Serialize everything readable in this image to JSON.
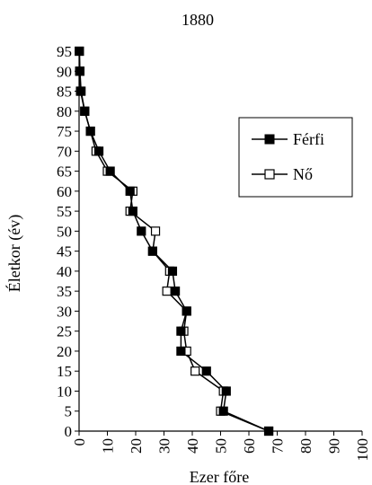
{
  "chart_data": {
    "type": "line",
    "title": "1880",
    "xlabel": "Ezer főre",
    "ylabel": "Életkor (év)",
    "xlim": [
      0,
      100
    ],
    "ylim": [
      0,
      95
    ],
    "xticks": [
      0,
      10,
      20,
      30,
      40,
      50,
      60,
      70,
      80,
      90,
      100
    ],
    "yticks": [
      0,
      5,
      10,
      15,
      20,
      25,
      30,
      35,
      40,
      45,
      50,
      55,
      60,
      65,
      70,
      75,
      80,
      85,
      90,
      95
    ],
    "grid": false,
    "legend_position": "right",
    "series": [
      {
        "name": "Férfi",
        "marker": "filled-square",
        "color": "#000000",
        "points": [
          {
            "x": 67,
            "y": 0
          },
          {
            "x": 51,
            "y": 5
          },
          {
            "x": 52,
            "y": 10
          },
          {
            "x": 45,
            "y": 15
          },
          {
            "x": 36,
            "y": 20
          },
          {
            "x": 36,
            "y": 25
          },
          {
            "x": 38,
            "y": 30
          },
          {
            "x": 34,
            "y": 35
          },
          {
            "x": 33,
            "y": 40
          },
          {
            "x": 26,
            "y": 45
          },
          {
            "x": 22,
            "y": 50
          },
          {
            "x": 19,
            "y": 55
          },
          {
            "x": 18,
            "y": 60
          },
          {
            "x": 11,
            "y": 65
          },
          {
            "x": 7,
            "y": 70
          },
          {
            "x": 4,
            "y": 75
          },
          {
            "x": 2,
            "y": 80
          },
          {
            "x": 0.5,
            "y": 85
          },
          {
            "x": 0.2,
            "y": 90
          },
          {
            "x": 0.1,
            "y": 95
          }
        ]
      },
      {
        "name": "Nő",
        "marker": "open-square",
        "color": "#000000",
        "points": [
          {
            "x": 67,
            "y": 0
          },
          {
            "x": 50,
            "y": 5
          },
          {
            "x": 51,
            "y": 10
          },
          {
            "x": 41,
            "y": 15
          },
          {
            "x": 38,
            "y": 20
          },
          {
            "x": 37,
            "y": 25
          },
          {
            "x": 38,
            "y": 30
          },
          {
            "x": 31,
            "y": 35
          },
          {
            "x": 32,
            "y": 40
          },
          {
            "x": 26,
            "y": 45
          },
          {
            "x": 27,
            "y": 50
          },
          {
            "x": 18,
            "y": 55
          },
          {
            "x": 19,
            "y": 60
          },
          {
            "x": 10,
            "y": 65
          },
          {
            "x": 6,
            "y": 70
          },
          {
            "x": 4,
            "y": 75
          },
          {
            "x": 2,
            "y": 80
          },
          {
            "x": 0.7,
            "y": 85
          },
          {
            "x": 0.3,
            "y": 90
          },
          {
            "x": 0.1,
            "y": 95
          }
        ]
      }
    ]
  }
}
